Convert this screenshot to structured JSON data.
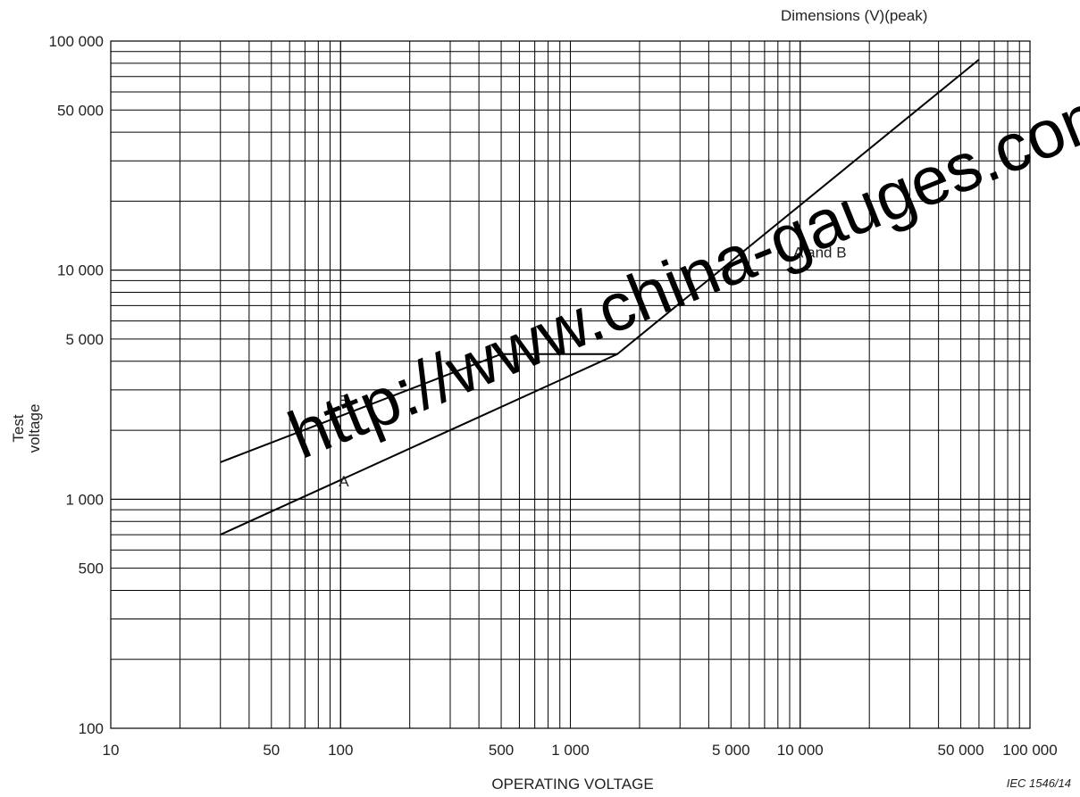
{
  "chart_data": {
    "type": "line",
    "header_note": "Dimensions   (V)(peak)",
    "xlabel": "OPERATING VOLTAGE",
    "ylabel_line1": "Test",
    "ylabel_line2": "voltage",
    "x_scale": "log",
    "y_scale": "log",
    "xlim": [
      10,
      100000
    ],
    "ylim": [
      100,
      100000
    ],
    "grid": true,
    "x_tick_labels": [
      {
        "value": 10,
        "label": "10"
      },
      {
        "value": 50,
        "label": "50"
      },
      {
        "value": 100,
        "label": "100"
      },
      {
        "value": 500,
        "label": "500"
      },
      {
        "value": 1000,
        "label": "1 000"
      },
      {
        "value": 5000,
        "label": "5 000"
      },
      {
        "value": 10000,
        "label": "10 000"
      },
      {
        "value": 50000,
        "label": "50 000"
      },
      {
        "value": 100000,
        "label": "100 000"
      }
    ],
    "y_tick_labels": [
      {
        "value": 100,
        "label": "100"
      },
      {
        "value": 500,
        "label": "500"
      },
      {
        "value": 1000,
        "label": "1 000"
      },
      {
        "value": 5000,
        "label": "5 000"
      },
      {
        "value": 10000,
        "label": "10 000"
      },
      {
        "value": 50000,
        "label": "50 000"
      },
      {
        "value": 100000,
        "label": "100 000"
      }
    ],
    "series": [
      {
        "name": "A",
        "points": [
          [
            30,
            700
          ],
          [
            1600,
            4300
          ],
          [
            60000,
            83000
          ]
        ]
      },
      {
        "name": "B",
        "points": [
          [
            30,
            1450
          ],
          [
            500,
            4300
          ],
          [
            1600,
            4300
          ]
        ]
      }
    ],
    "annotations": [
      {
        "text": "A",
        "x": 100,
        "y": 1200
      },
      {
        "text": "B",
        "x": 100,
        "y": 2700
      },
      {
        "text": "A and B",
        "x": 9500,
        "y": 12000
      }
    ],
    "figure_ref": "IEC  1546/14"
  },
  "watermark": "http://www.china-gauges.com"
}
